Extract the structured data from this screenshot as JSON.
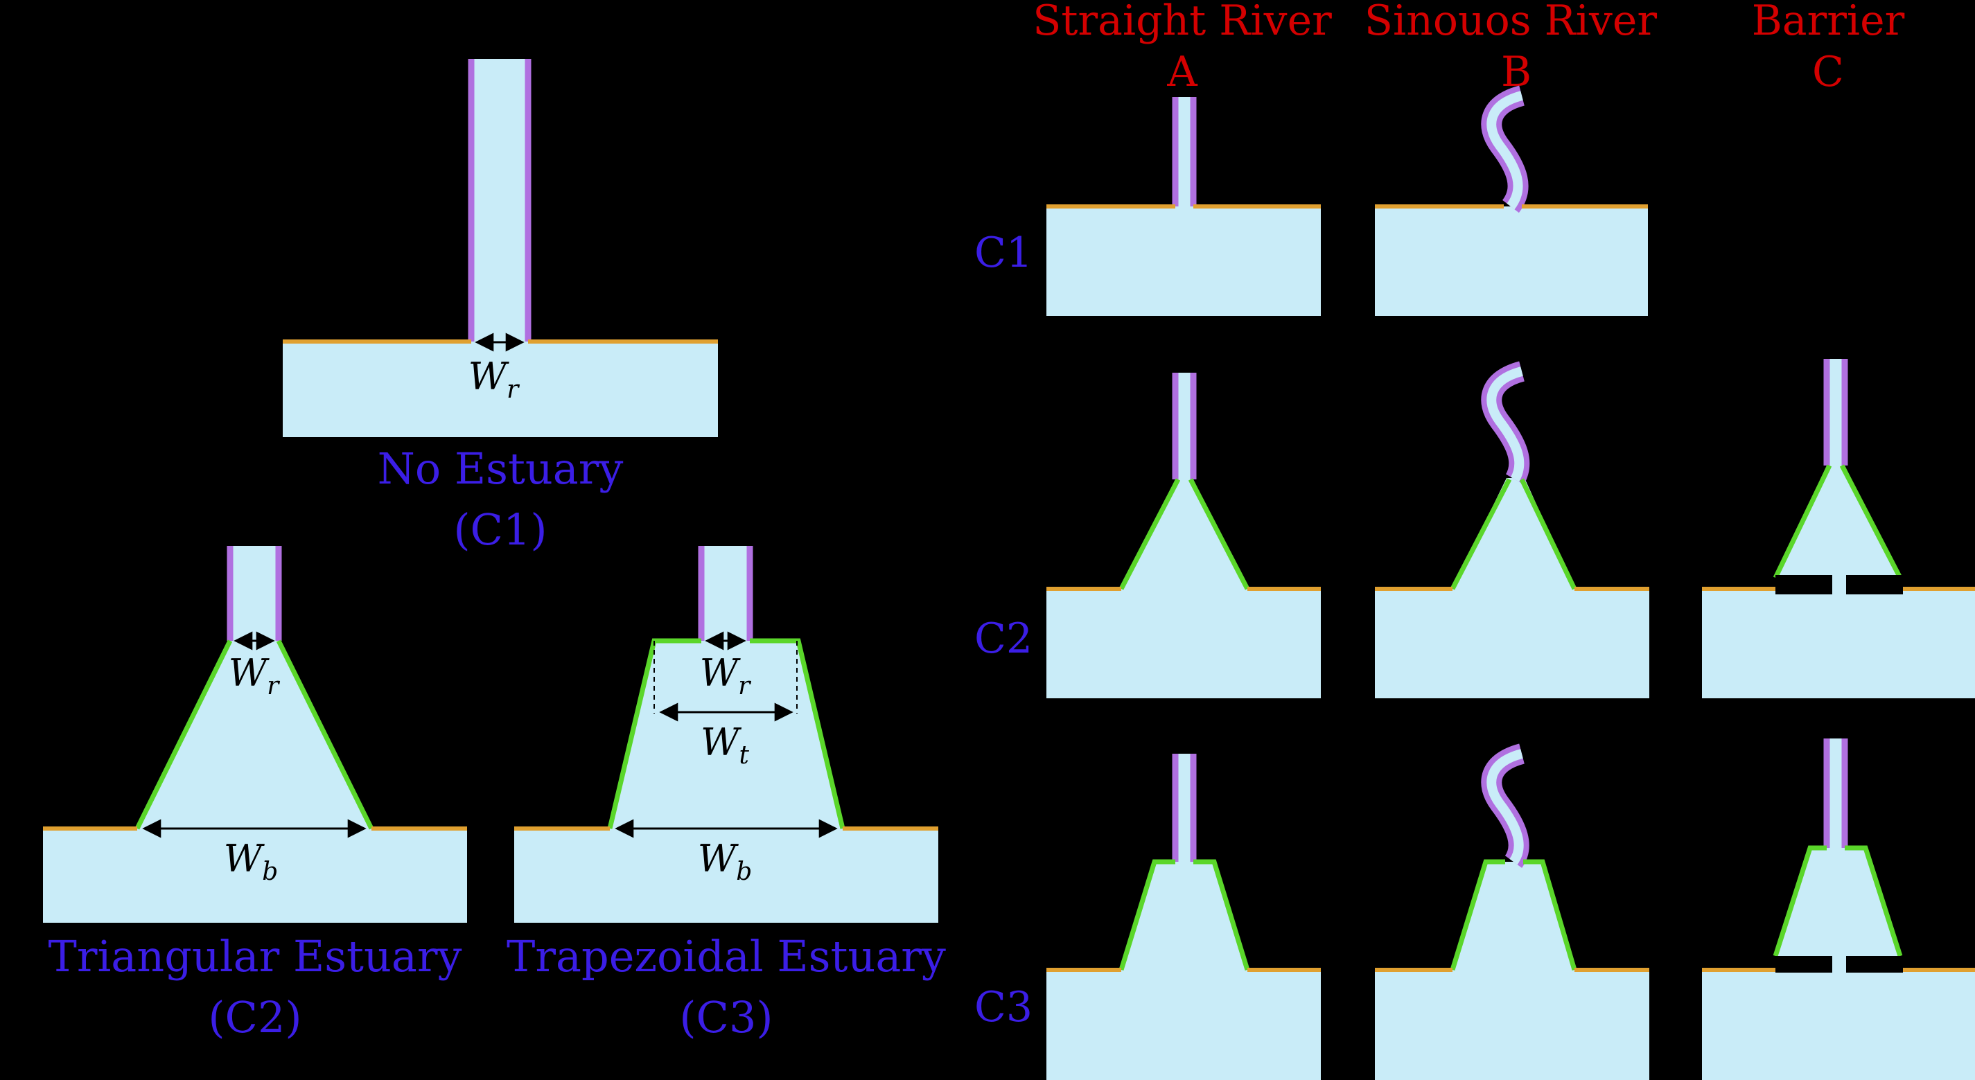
{
  "left_panels": {
    "no_estuary": {
      "name": "No Estuary",
      "code": "(C1)"
    },
    "triangular": {
      "name": "Triangular Estuary",
      "code": "(C2)"
    },
    "trapezoidal": {
      "name": "Trapezoidal Estuary",
      "code": "(C3)"
    }
  },
  "dimensions": {
    "river_width": {
      "symbol": "W",
      "subscript": "r"
    },
    "base_width": {
      "symbol": "W",
      "subscript": "b"
    },
    "top_width": {
      "symbol": "W",
      "subscript": "t"
    }
  },
  "grid": {
    "columns": [
      {
        "name": "Straight River",
        "letter": "A"
      },
      {
        "name": "Sinouos River",
        "letter": "B"
      },
      {
        "name": "Barrier",
        "letter": "C"
      }
    ],
    "rows": [
      "C1",
      "C2",
      "C3"
    ]
  },
  "colors": {
    "background": "#000000",
    "water": "#c9ecf8",
    "coastline": "#e0a030",
    "river_bank": "#b070e0",
    "estuary_bank": "#5ad62a",
    "caption": "#3b1ee6",
    "column_header": "#d40000"
  }
}
